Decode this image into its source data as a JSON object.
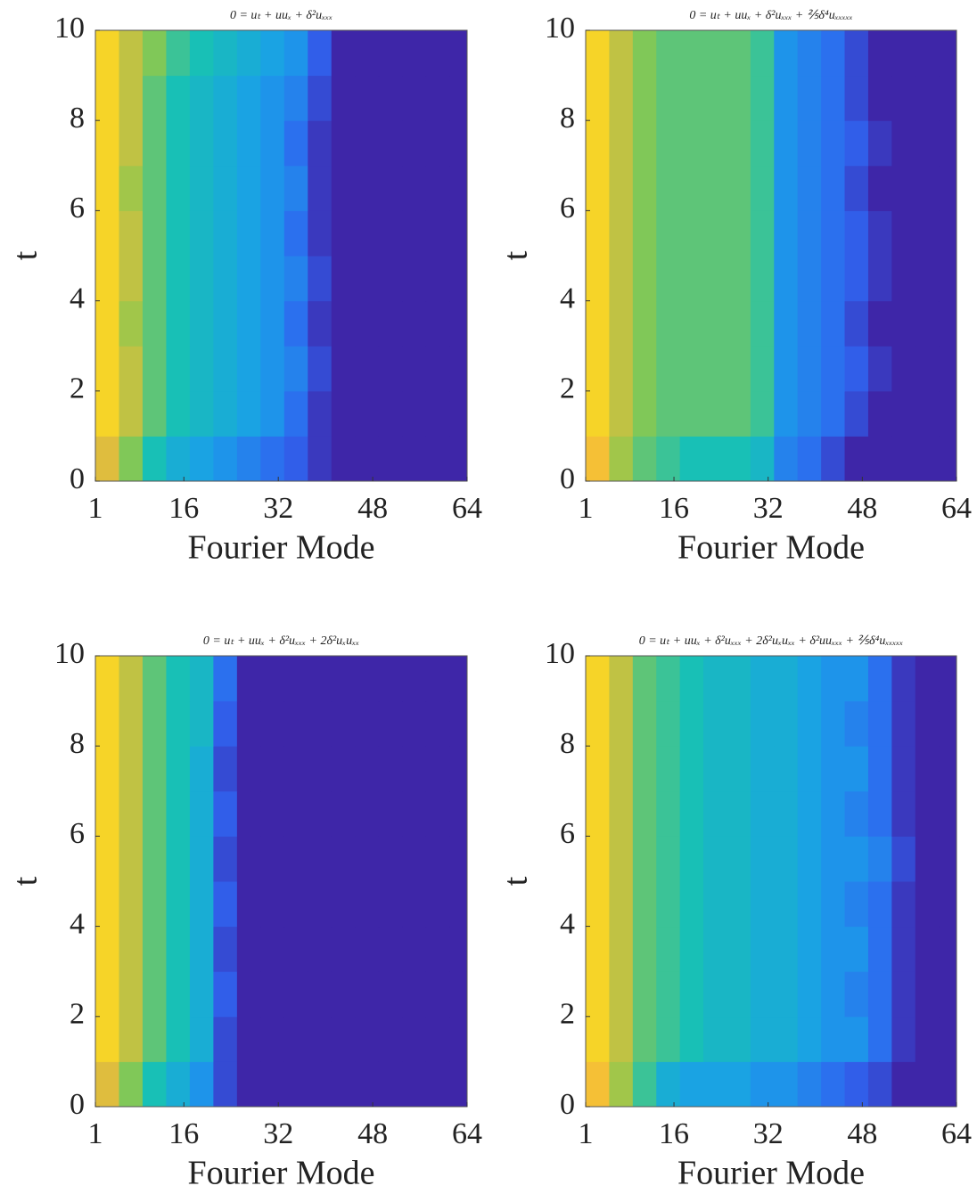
{
  "chart_data": [
    {
      "type": "heatmap",
      "title": "0 = uₜ + uuₓ + δ²uₓₓₓ",
      "xlabel": "Fourier Mode",
      "ylabel": "t",
      "xlim": [
        1,
        64
      ],
      "ylim": [
        0,
        10
      ],
      "xticks": [
        1,
        16,
        32,
        48,
        64
      ],
      "yticks": [
        0,
        2,
        4,
        6,
        8,
        10
      ],
      "zlim": [
        0,
        1
      ],
      "colormap": [
        "#3e26a8",
        "#2f64f0",
        "#1aa0e8",
        "#18c0b6",
        "#8cc94e",
        "#f4ba3a",
        "#f9fb0e"
      ],
      "x_edges": [
        1,
        5,
        9,
        13,
        17,
        21,
        25,
        29,
        33,
        37,
        41,
        45,
        49,
        53,
        57,
        61,
        64
      ],
      "y_edges": [
        0,
        1,
        2,
        3,
        4,
        5,
        6,
        7,
        8,
        9,
        10
      ],
      "z": [
        [
          0.8,
          0.65,
          0.5,
          0.4,
          0.35,
          0.3,
          0.25,
          0.2,
          0.15,
          0.05,
          0,
          0,
          0,
          0,
          0,
          0
        ],
        [
          0.9,
          0.75,
          0.6,
          0.5,
          0.45,
          0.4,
          0.35,
          0.3,
          0.2,
          0.05,
          0,
          0,
          0,
          0,
          0,
          0
        ],
        [
          0.9,
          0.75,
          0.6,
          0.5,
          0.45,
          0.4,
          0.35,
          0.3,
          0.25,
          0.1,
          0,
          0,
          0,
          0,
          0,
          0
        ],
        [
          0.9,
          0.7,
          0.6,
          0.5,
          0.45,
          0.4,
          0.35,
          0.3,
          0.2,
          0.05,
          0,
          0,
          0,
          0,
          0,
          0
        ],
        [
          0.9,
          0.75,
          0.6,
          0.5,
          0.45,
          0.4,
          0.35,
          0.3,
          0.25,
          0.1,
          0,
          0,
          0,
          0,
          0,
          0
        ],
        [
          0.9,
          0.75,
          0.6,
          0.5,
          0.45,
          0.4,
          0.35,
          0.3,
          0.2,
          0.05,
          0,
          0,
          0,
          0,
          0,
          0
        ],
        [
          0.9,
          0.7,
          0.6,
          0.5,
          0.45,
          0.4,
          0.35,
          0.3,
          0.25,
          0.05,
          0,
          0,
          0,
          0,
          0,
          0
        ],
        [
          0.9,
          0.75,
          0.6,
          0.5,
          0.45,
          0.4,
          0.35,
          0.3,
          0.2,
          0.05,
          0,
          0,
          0,
          0,
          0,
          0
        ],
        [
          0.9,
          0.75,
          0.6,
          0.5,
          0.45,
          0.4,
          0.35,
          0.3,
          0.25,
          0.1,
          0,
          0,
          0,
          0,
          0,
          0
        ],
        [
          0.9,
          0.75,
          0.65,
          0.55,
          0.5,
          0.45,
          0.4,
          0.35,
          0.3,
          0.15,
          0,
          0,
          0,
          0,
          0,
          0
        ]
      ]
    },
    {
      "type": "heatmap",
      "title": "0 = uₜ + uuₓ + δ²uₓₓₓ + ⅖δ⁴uₓₓₓₓₓ",
      "xlabel": "Fourier Mode",
      "ylabel": "t",
      "xlim": [
        1,
        64
      ],
      "ylim": [
        0,
        10
      ],
      "xticks": [
        1,
        16,
        32,
        48,
        64
      ],
      "yticks": [
        0,
        2,
        4,
        6,
        8,
        10
      ],
      "zlim": [
        0,
        1
      ],
      "colormap": [
        "#3e26a8",
        "#2f64f0",
        "#1aa0e8",
        "#18c0b6",
        "#8cc94e",
        "#f4ba3a",
        "#f9fb0e"
      ],
      "x_edges": [
        1,
        5,
        9,
        13,
        17,
        21,
        25,
        29,
        33,
        37,
        41,
        45,
        49,
        53,
        57,
        61,
        64
      ],
      "y_edges": [
        0,
        1,
        2,
        3,
        4,
        5,
        6,
        7,
        8,
        9,
        10
      ],
      "z": [
        [
          0.85,
          0.7,
          0.6,
          0.55,
          0.5,
          0.5,
          0.5,
          0.45,
          0.25,
          0.2,
          0.1,
          0,
          0,
          0,
          0,
          0
        ],
        [
          0.9,
          0.75,
          0.65,
          0.6,
          0.6,
          0.6,
          0.6,
          0.55,
          0.3,
          0.25,
          0.2,
          0.1,
          0,
          0,
          0,
          0
        ],
        [
          0.9,
          0.75,
          0.65,
          0.6,
          0.6,
          0.6,
          0.6,
          0.55,
          0.3,
          0.25,
          0.2,
          0.15,
          0.05,
          0,
          0,
          0
        ],
        [
          0.9,
          0.75,
          0.65,
          0.6,
          0.6,
          0.6,
          0.6,
          0.55,
          0.3,
          0.25,
          0.2,
          0.1,
          0,
          0,
          0,
          0
        ],
        [
          0.9,
          0.75,
          0.65,
          0.6,
          0.6,
          0.6,
          0.6,
          0.55,
          0.3,
          0.25,
          0.2,
          0.15,
          0.05,
          0,
          0,
          0
        ],
        [
          0.9,
          0.75,
          0.65,
          0.6,
          0.6,
          0.6,
          0.6,
          0.55,
          0.3,
          0.25,
          0.2,
          0.15,
          0.05,
          0,
          0,
          0
        ],
        [
          0.9,
          0.75,
          0.65,
          0.6,
          0.6,
          0.6,
          0.6,
          0.55,
          0.3,
          0.25,
          0.2,
          0.1,
          0,
          0,
          0,
          0
        ],
        [
          0.9,
          0.75,
          0.65,
          0.6,
          0.6,
          0.6,
          0.6,
          0.55,
          0.3,
          0.25,
          0.2,
          0.15,
          0.05,
          0,
          0,
          0
        ],
        [
          0.9,
          0.75,
          0.65,
          0.6,
          0.6,
          0.6,
          0.6,
          0.55,
          0.3,
          0.25,
          0.2,
          0.1,
          0,
          0,
          0,
          0
        ],
        [
          0.9,
          0.75,
          0.65,
          0.6,
          0.6,
          0.6,
          0.6,
          0.55,
          0.3,
          0.25,
          0.2,
          0.1,
          0,
          0,
          0,
          0
        ]
      ]
    },
    {
      "type": "heatmap",
      "title": "0 = uₜ + uuₓ + δ²uₓₓₓ + 2δ²uₓuₓₓ",
      "xlabel": "Fourier Mode",
      "ylabel": "t",
      "xlim": [
        1,
        64
      ],
      "ylim": [
        0,
        10
      ],
      "xticks": [
        1,
        16,
        32,
        48,
        64
      ],
      "yticks": [
        0,
        2,
        4,
        6,
        8,
        10
      ],
      "zlim": [
        0,
        1
      ],
      "colormap": [
        "#3e26a8",
        "#2f64f0",
        "#1aa0e8",
        "#18c0b6",
        "#8cc94e",
        "#f4ba3a",
        "#f9fb0e"
      ],
      "x_edges": [
        1,
        5,
        9,
        13,
        17,
        21,
        25,
        29,
        33,
        37,
        41,
        45,
        49,
        53,
        57,
        61,
        64
      ],
      "y_edges": [
        0,
        1,
        2,
        3,
        4,
        5,
        6,
        7,
        8,
        9,
        10
      ],
      "z": [
        [
          0.8,
          0.65,
          0.5,
          0.4,
          0.3,
          0.1,
          0,
          0,
          0,
          0,
          0,
          0,
          0,
          0,
          0,
          0
        ],
        [
          0.9,
          0.75,
          0.6,
          0.5,
          0.4,
          0.1,
          0,
          0,
          0,
          0,
          0,
          0,
          0,
          0,
          0,
          0
        ],
        [
          0.9,
          0.75,
          0.6,
          0.5,
          0.4,
          0.15,
          0,
          0,
          0,
          0,
          0,
          0,
          0,
          0,
          0,
          0
        ],
        [
          0.9,
          0.75,
          0.6,
          0.5,
          0.4,
          0.1,
          0,
          0,
          0,
          0,
          0,
          0,
          0,
          0,
          0,
          0
        ],
        [
          0.9,
          0.75,
          0.6,
          0.5,
          0.4,
          0.15,
          0,
          0,
          0,
          0,
          0,
          0,
          0,
          0,
          0,
          0
        ],
        [
          0.9,
          0.75,
          0.6,
          0.5,
          0.4,
          0.1,
          0,
          0,
          0,
          0,
          0,
          0,
          0,
          0,
          0,
          0
        ],
        [
          0.9,
          0.75,
          0.6,
          0.5,
          0.4,
          0.15,
          0,
          0,
          0,
          0,
          0,
          0,
          0,
          0,
          0,
          0
        ],
        [
          0.9,
          0.75,
          0.6,
          0.5,
          0.4,
          0.1,
          0,
          0,
          0,
          0,
          0,
          0,
          0,
          0,
          0,
          0
        ],
        [
          0.9,
          0.75,
          0.6,
          0.5,
          0.45,
          0.15,
          0,
          0,
          0,
          0,
          0,
          0,
          0,
          0,
          0,
          0
        ],
        [
          0.9,
          0.75,
          0.6,
          0.5,
          0.45,
          0.2,
          0,
          0,
          0,
          0,
          0,
          0,
          0,
          0,
          0,
          0
        ]
      ]
    },
    {
      "type": "heatmap",
      "title": "0 = uₜ + uuₓ + δ²uₓₓₓ + 2δ²uₓuₓₓ + δ²uuₓₓₓ + ⅖δ⁴uₓₓₓₓₓ",
      "xlabel": "Fourier Mode",
      "ylabel": "t",
      "xlim": [
        1,
        64
      ],
      "ylim": [
        0,
        10
      ],
      "xticks": [
        1,
        16,
        32,
        48,
        64
      ],
      "yticks": [
        0,
        2,
        4,
        6,
        8,
        10
      ],
      "zlim": [
        0,
        1
      ],
      "colormap": [
        "#3e26a8",
        "#2f64f0",
        "#1aa0e8",
        "#18c0b6",
        "#8cc94e",
        "#f4ba3a",
        "#f9fb0e"
      ],
      "x_edges": [
        1,
        5,
        9,
        13,
        17,
        21,
        25,
        29,
        33,
        37,
        41,
        45,
        49,
        53,
        57,
        61,
        64
      ],
      "y_edges": [
        0,
        1,
        2,
        3,
        4,
        5,
        6,
        7,
        8,
        9,
        10
      ],
      "z": [
        [
          0.85,
          0.7,
          0.55,
          0.4,
          0.35,
          0.35,
          0.35,
          0.3,
          0.3,
          0.25,
          0.2,
          0.15,
          0.1,
          0,
          0,
          0
        ],
        [
          0.9,
          0.75,
          0.6,
          0.55,
          0.5,
          0.45,
          0.45,
          0.4,
          0.4,
          0.35,
          0.3,
          0.3,
          0.2,
          0.05,
          0,
          0
        ],
        [
          0.9,
          0.75,
          0.6,
          0.55,
          0.5,
          0.45,
          0.45,
          0.4,
          0.4,
          0.35,
          0.3,
          0.25,
          0.2,
          0.05,
          0,
          0
        ],
        [
          0.9,
          0.75,
          0.6,
          0.55,
          0.5,
          0.45,
          0.45,
          0.4,
          0.4,
          0.35,
          0.3,
          0.3,
          0.2,
          0.05,
          0,
          0
        ],
        [
          0.9,
          0.75,
          0.6,
          0.55,
          0.5,
          0.45,
          0.45,
          0.4,
          0.4,
          0.35,
          0.3,
          0.25,
          0.2,
          0.05,
          0,
          0
        ],
        [
          0.9,
          0.75,
          0.6,
          0.55,
          0.5,
          0.45,
          0.45,
          0.4,
          0.4,
          0.35,
          0.3,
          0.3,
          0.25,
          0.1,
          0,
          0
        ],
        [
          0.9,
          0.75,
          0.6,
          0.55,
          0.5,
          0.45,
          0.45,
          0.4,
          0.4,
          0.35,
          0.3,
          0.25,
          0.2,
          0.05,
          0,
          0
        ],
        [
          0.9,
          0.75,
          0.6,
          0.55,
          0.5,
          0.45,
          0.45,
          0.4,
          0.4,
          0.35,
          0.3,
          0.3,
          0.2,
          0.05,
          0,
          0
        ],
        [
          0.9,
          0.75,
          0.6,
          0.55,
          0.5,
          0.45,
          0.45,
          0.4,
          0.4,
          0.35,
          0.3,
          0.25,
          0.2,
          0.05,
          0,
          0
        ],
        [
          0.9,
          0.75,
          0.6,
          0.55,
          0.5,
          0.45,
          0.45,
          0.4,
          0.4,
          0.35,
          0.3,
          0.3,
          0.2,
          0.05,
          0,
          0
        ]
      ]
    }
  ]
}
